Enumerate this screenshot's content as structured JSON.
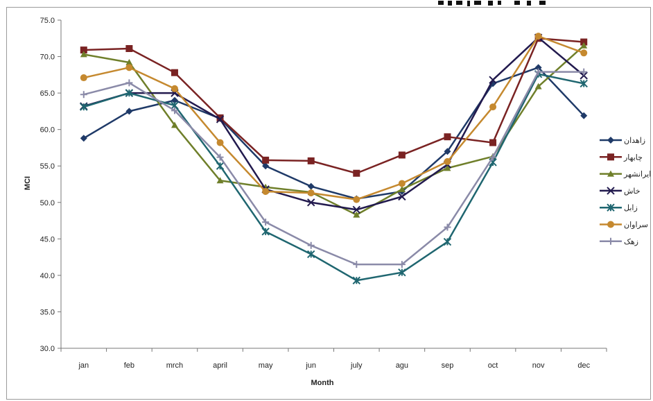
{
  "chart_data": {
    "type": "line",
    "title": "",
    "xlabel": "Month",
    "ylabel": "MCI",
    "ylim": [
      30,
      75
    ],
    "yticks": [
      "30.0",
      "35.0",
      "40.0",
      "45.0",
      "50.0",
      "55.0",
      "60.0",
      "65.0",
      "70.0",
      "75.0"
    ],
    "categories": [
      "jan",
      "feb",
      "mrch",
      "april",
      "may",
      "jun",
      "july",
      "agu",
      "sep",
      "oct",
      "nov",
      "dec"
    ],
    "grid": false,
    "legend_position": "right",
    "series": [
      {
        "name": "زاهدان",
        "color": "#1f3a68",
        "marker": "diamond",
        "values": [
          58.8,
          62.5,
          64.0,
          61.5,
          55.0,
          52.2,
          50.5,
          51.5,
          57.0,
          66.3,
          68.5,
          61.9
        ]
      },
      {
        "name": "چابهار",
        "color": "#7a2323",
        "marker": "square",
        "values": [
          70.9,
          71.1,
          67.8,
          61.6,
          55.8,
          55.7,
          54.0,
          56.5,
          59.0,
          58.2,
          72.5,
          72.0
        ]
      },
      {
        "name": "ايرانشهر",
        "color": "#6f7f2a",
        "marker": "triangle",
        "values": [
          70.3,
          69.2,
          60.6,
          53.0,
          52.1,
          51.4,
          48.3,
          51.8,
          54.7,
          56.3,
          65.9,
          71.5
        ]
      },
      {
        "name": "خاش",
        "color": "#221a4e",
        "marker": "x",
        "values": [
          63.2,
          65.0,
          65.0,
          61.4,
          51.8,
          50.0,
          49.0,
          50.8,
          55.2,
          66.8,
          72.6,
          67.4
        ]
      },
      {
        "name": "زابل",
        "color": "#1f6670",
        "marker": "star",
        "values": [
          63.1,
          65.0,
          63.3,
          55.0,
          46.0,
          42.9,
          39.3,
          40.4,
          44.6,
          55.5,
          67.6,
          66.3
        ]
      },
      {
        "name": "سراوان",
        "color": "#c5892f",
        "marker": "circle",
        "values": [
          67.1,
          68.5,
          65.6,
          58.2,
          51.5,
          51.3,
          50.4,
          52.6,
          55.6,
          63.1,
          72.8,
          70.5
        ]
      },
      {
        "name": "زهک",
        "color": "#8a8aa8",
        "marker": "plus",
        "values": [
          64.8,
          66.4,
          62.6,
          56.2,
          47.3,
          44.1,
          41.5,
          41.5,
          46.6,
          56.2,
          67.9,
          67.9
        ]
      }
    ]
  }
}
